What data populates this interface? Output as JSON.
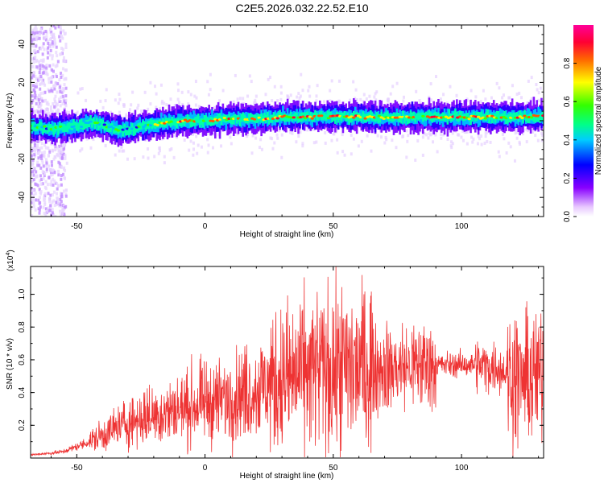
{
  "title": "C2E5.2026.032.22.52.E10",
  "colors": {
    "snr_line": "#ee3333",
    "frame": "#000000"
  },
  "chart_data": [
    {
      "type": "heatmap",
      "xlabel": "Height of straight line (km)",
      "ylabel": "Frequency (Hz)",
      "xlim": [
        -68,
        132
      ],
      "ylim": [
        -50,
        50
      ],
      "xticks": [
        "-50",
        "0",
        "50",
        "100"
      ],
      "yticks": [
        "-40",
        "-20",
        "0",
        "20",
        "40"
      ],
      "grid": false,
      "colorbar": {
        "label": "Normalized spectral amplitude",
        "range": [
          0,
          1
        ],
        "ticks": [
          "0.0",
          "0.2",
          "0.4",
          "0.6",
          "0.8"
        ],
        "colormap": "rainbow (white-violet-blue-cyan-green-yellow-red-magenta)"
      },
      "ridge": {
        "x": [
          -68,
          -60,
          -50,
          -45,
          -40,
          -35,
          -30,
          -25,
          -20,
          -10,
          0,
          10,
          20,
          30,
          40,
          50,
          60,
          70,
          80,
          90,
          100,
          110,
          120,
          132
        ],
        "y": [
          -3,
          -4,
          -3,
          -1,
          -2,
          -4,
          -5,
          -3,
          -2,
          0,
          0,
          1,
          1,
          2,
          2,
          2,
          2,
          1.5,
          2,
          2,
          2,
          2,
          2,
          2
        ]
      }
    },
    {
      "type": "line",
      "xlabel": "Height of straight line (km)",
      "ylabel": "SNR (10 * v/v)",
      "scale_label": "(x10",
      "scale_exp": "4",
      "scale_close": ")",
      "xlim": [
        -68,
        132
      ],
      "ylim": [
        0,
        1.17
      ],
      "xticks": [
        "-50",
        "0",
        "50",
        "100"
      ],
      "yticks": [
        "0.2",
        "0.4",
        "0.6",
        "0.8",
        "1.0"
      ],
      "grid": false,
      "series": [
        {
          "x": [
            -68,
            -60,
            -55,
            -50,
            -45,
            -40,
            -35,
            -30,
            -25,
            -20,
            -15,
            -10,
            -5,
            0,
            5,
            10,
            15,
            20,
            25,
            30,
            35,
            40,
            45,
            50,
            55,
            60,
            65,
            70,
            75,
            80,
            85,
            90,
            95,
            100,
            105,
            110,
            115,
            120,
            125,
            130,
            132
          ],
          "y": [
            0.02,
            0.03,
            0.04,
            0.07,
            0.1,
            0.14,
            0.18,
            0.22,
            0.24,
            0.26,
            0.28,
            0.3,
            0.32,
            0.34,
            0.35,
            0.37,
            0.4,
            0.42,
            0.45,
            0.48,
            0.5,
            0.52,
            0.53,
            0.54,
            0.55,
            0.55,
            0.56,
            0.55,
            0.55,
            0.56,
            0.57,
            0.57,
            0.57,
            0.57,
            0.57,
            0.56,
            0.55,
            0.5,
            0.48,
            0.5,
            0.55
          ]
        }
      ]
    }
  ]
}
